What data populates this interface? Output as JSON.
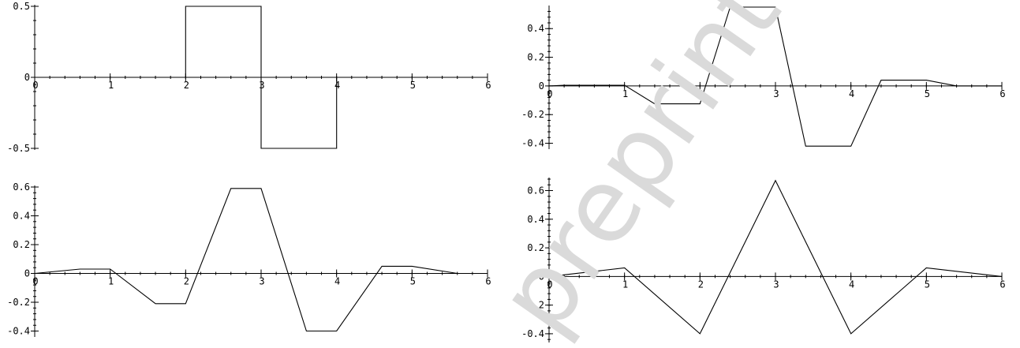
{
  "watermark": "preprint",
  "chart_data": [
    {
      "type": "line",
      "title": "",
      "xlabel": "",
      "ylabel": "",
      "xlim": [
        0,
        6
      ],
      "ylim": [
        -0.5,
        0.5
      ],
      "x_ticks": [
        0,
        1,
        2,
        3,
        4,
        5,
        6
      ],
      "x_tick_labels": [
        "0",
        "1",
        "2",
        "3",
        "4",
        "5",
        "6"
      ],
      "y_ticks": [
        0.5,
        0,
        -0.5
      ],
      "y_tick_labels": [
        "0.5",
        "0",
        "-0.5"
      ],
      "grid": false,
      "series": [
        {
          "x": [
            0,
            2,
            2,
            3,
            3,
            4,
            4,
            6
          ],
          "y": [
            0,
            0,
            0.5,
            0.5,
            -0.5,
            -0.5,
            0,
            0
          ]
        }
      ]
    },
    {
      "type": "line",
      "title": "",
      "xlabel": "",
      "ylabel": "",
      "xlim": [
        0,
        6
      ],
      "ylim": [
        -0.43,
        0.55
      ],
      "x_ticks": [
        0,
        1,
        2,
        3,
        4,
        5,
        6
      ],
      "x_tick_labels": [
        "0",
        "1",
        "2",
        "3",
        "4",
        "5",
        "6"
      ],
      "y_ticks": [
        0.4,
        0.2,
        0,
        -0.2,
        -0.4
      ],
      "y_tick_labels": [
        "0.4",
        "0.2",
        "0",
        "-0.2",
        "-0.4"
      ],
      "grid": false,
      "series": [
        {
          "x": [
            0,
            0.2,
            1,
            1.4,
            2,
            2.4,
            3,
            3.4,
            4,
            4.4,
            5,
            5.4,
            6
          ],
          "y": [
            0,
            0.005,
            0.005,
            -0.125,
            -0.125,
            0.55,
            0.55,
            -0.42,
            -0.42,
            0.04,
            0.04,
            0,
            0
          ]
        }
      ]
    },
    {
      "type": "line",
      "title": "",
      "xlabel": "",
      "ylabel": "",
      "xlim": [
        0,
        6
      ],
      "ylim": [
        -0.43,
        0.6
      ],
      "x_ticks": [
        0,
        1,
        2,
        3,
        4,
        5,
        6
      ],
      "x_tick_labels": [
        "0",
        "1",
        "2",
        "3",
        "4",
        "5",
        "6"
      ],
      "y_ticks": [
        0.6,
        0.4,
        0.2,
        0,
        -0.2,
        -0.4
      ],
      "y_tick_labels": [
        "0.6",
        "0.4",
        "0.2",
        "0",
        "-0.2",
        "-0.4"
      ],
      "grid": false,
      "series": [
        {
          "x": [
            0,
            0.6,
            1,
            1.6,
            2,
            2.6,
            3,
            3.6,
            4,
            4.6,
            5,
            5.6,
            6
          ],
          "y": [
            0,
            0.03,
            0.03,
            -0.21,
            -0.21,
            0.59,
            0.59,
            -0.4,
            -0.4,
            0.05,
            0.05,
            0,
            0
          ]
        }
      ]
    },
    {
      "type": "line",
      "title": "",
      "xlabel": "",
      "ylabel": "",
      "xlim": [
        0,
        6
      ],
      "ylim": [
        -0.45,
        0.68
      ],
      "x_ticks": [
        0,
        1,
        2,
        3,
        4,
        5,
        6
      ],
      "x_tick_labels": [
        "0",
        "1",
        "2",
        "3",
        "4",
        "5",
        "6"
      ],
      "y_ticks": [
        0.6,
        0.4,
        0.2,
        0,
        -0.2,
        -0.4
      ],
      "y_tick_labels": [
        "0.6",
        "0.4",
        "0.2",
        "0",
        "-0.2",
        "-0.4"
      ],
      "grid": false,
      "series": [
        {
          "x": [
            0,
            1,
            2,
            3,
            4,
            5,
            6
          ],
          "y": [
            0,
            0.06,
            -0.4,
            0.67,
            -0.4,
            0.06,
            0
          ]
        }
      ]
    }
  ]
}
